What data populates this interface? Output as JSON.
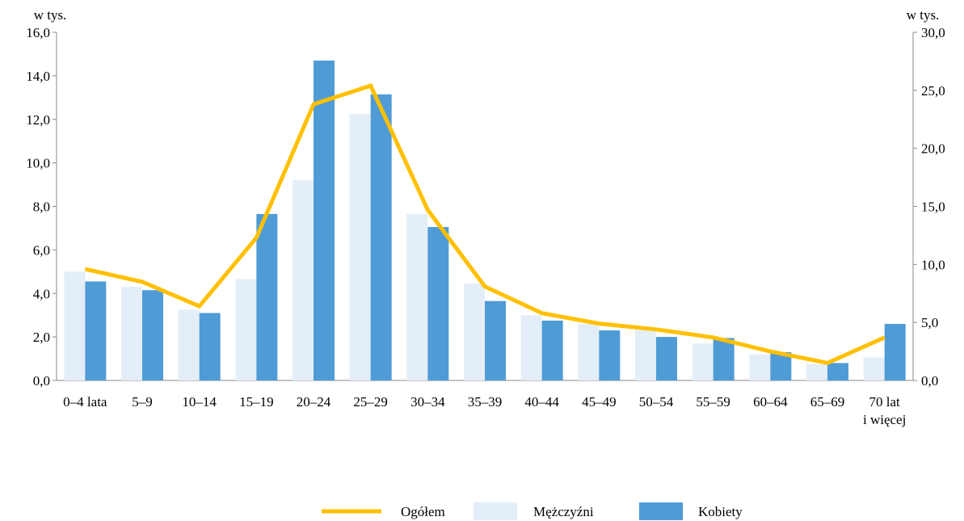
{
  "chart_data": {
    "type": "bar",
    "title": "",
    "ylabel_left": "w tys.",
    "ylabel_right": "w tys.",
    "ylim_left": [
      0,
      16
    ],
    "ylim_right": [
      0,
      30
    ],
    "y_ticks_left": [
      "0,0",
      "2,0",
      "4,0",
      "6,0",
      "8,0",
      "10,0",
      "12,0",
      "14,0",
      "16,0"
    ],
    "y_ticks_right": [
      "0,0",
      "5,0",
      "10,0",
      "15,0",
      "20,0",
      "25,0",
      "30,0"
    ],
    "categories": [
      [
        "0–4 lata"
      ],
      [
        "5–9"
      ],
      [
        "10–14"
      ],
      [
        "15–19"
      ],
      [
        "20–24"
      ],
      [
        "25–29"
      ],
      [
        "30–34"
      ],
      [
        "35–39"
      ],
      [
        "40–44"
      ],
      [
        "45–49"
      ],
      [
        "50–54"
      ],
      [
        "55–59"
      ],
      [
        "60–64"
      ],
      [
        "65–69"
      ],
      [
        "70 lat",
        "i więcej"
      ]
    ],
    "series": [
      {
        "name": "Mężczyźni",
        "type": "bar",
        "axis": "left",
        "color": "#e4eef8",
        "values": [
          5.0,
          4.3,
          3.25,
          4.65,
          9.2,
          12.25,
          7.65,
          4.45,
          3.0,
          2.6,
          2.4,
          1.7,
          1.2,
          0.75,
          1.05
        ]
      },
      {
        "name": "Kobiety",
        "type": "bar",
        "axis": "left",
        "color": "#4f9bd6",
        "values": [
          4.55,
          4.15,
          3.1,
          7.65,
          14.7,
          13.15,
          7.05,
          3.65,
          2.75,
          2.3,
          2.0,
          1.95,
          1.3,
          0.8,
          2.6
        ]
      },
      {
        "name": "Ogółem",
        "type": "line",
        "axis": "right",
        "color": "#ffc000",
        "values": [
          9.6,
          8.5,
          6.4,
          12.3,
          23.8,
          25.4,
          14.7,
          8.1,
          5.8,
          4.9,
          4.4,
          3.7,
          2.5,
          1.5,
          3.7
        ]
      }
    ],
    "legend_position": "bottom"
  }
}
